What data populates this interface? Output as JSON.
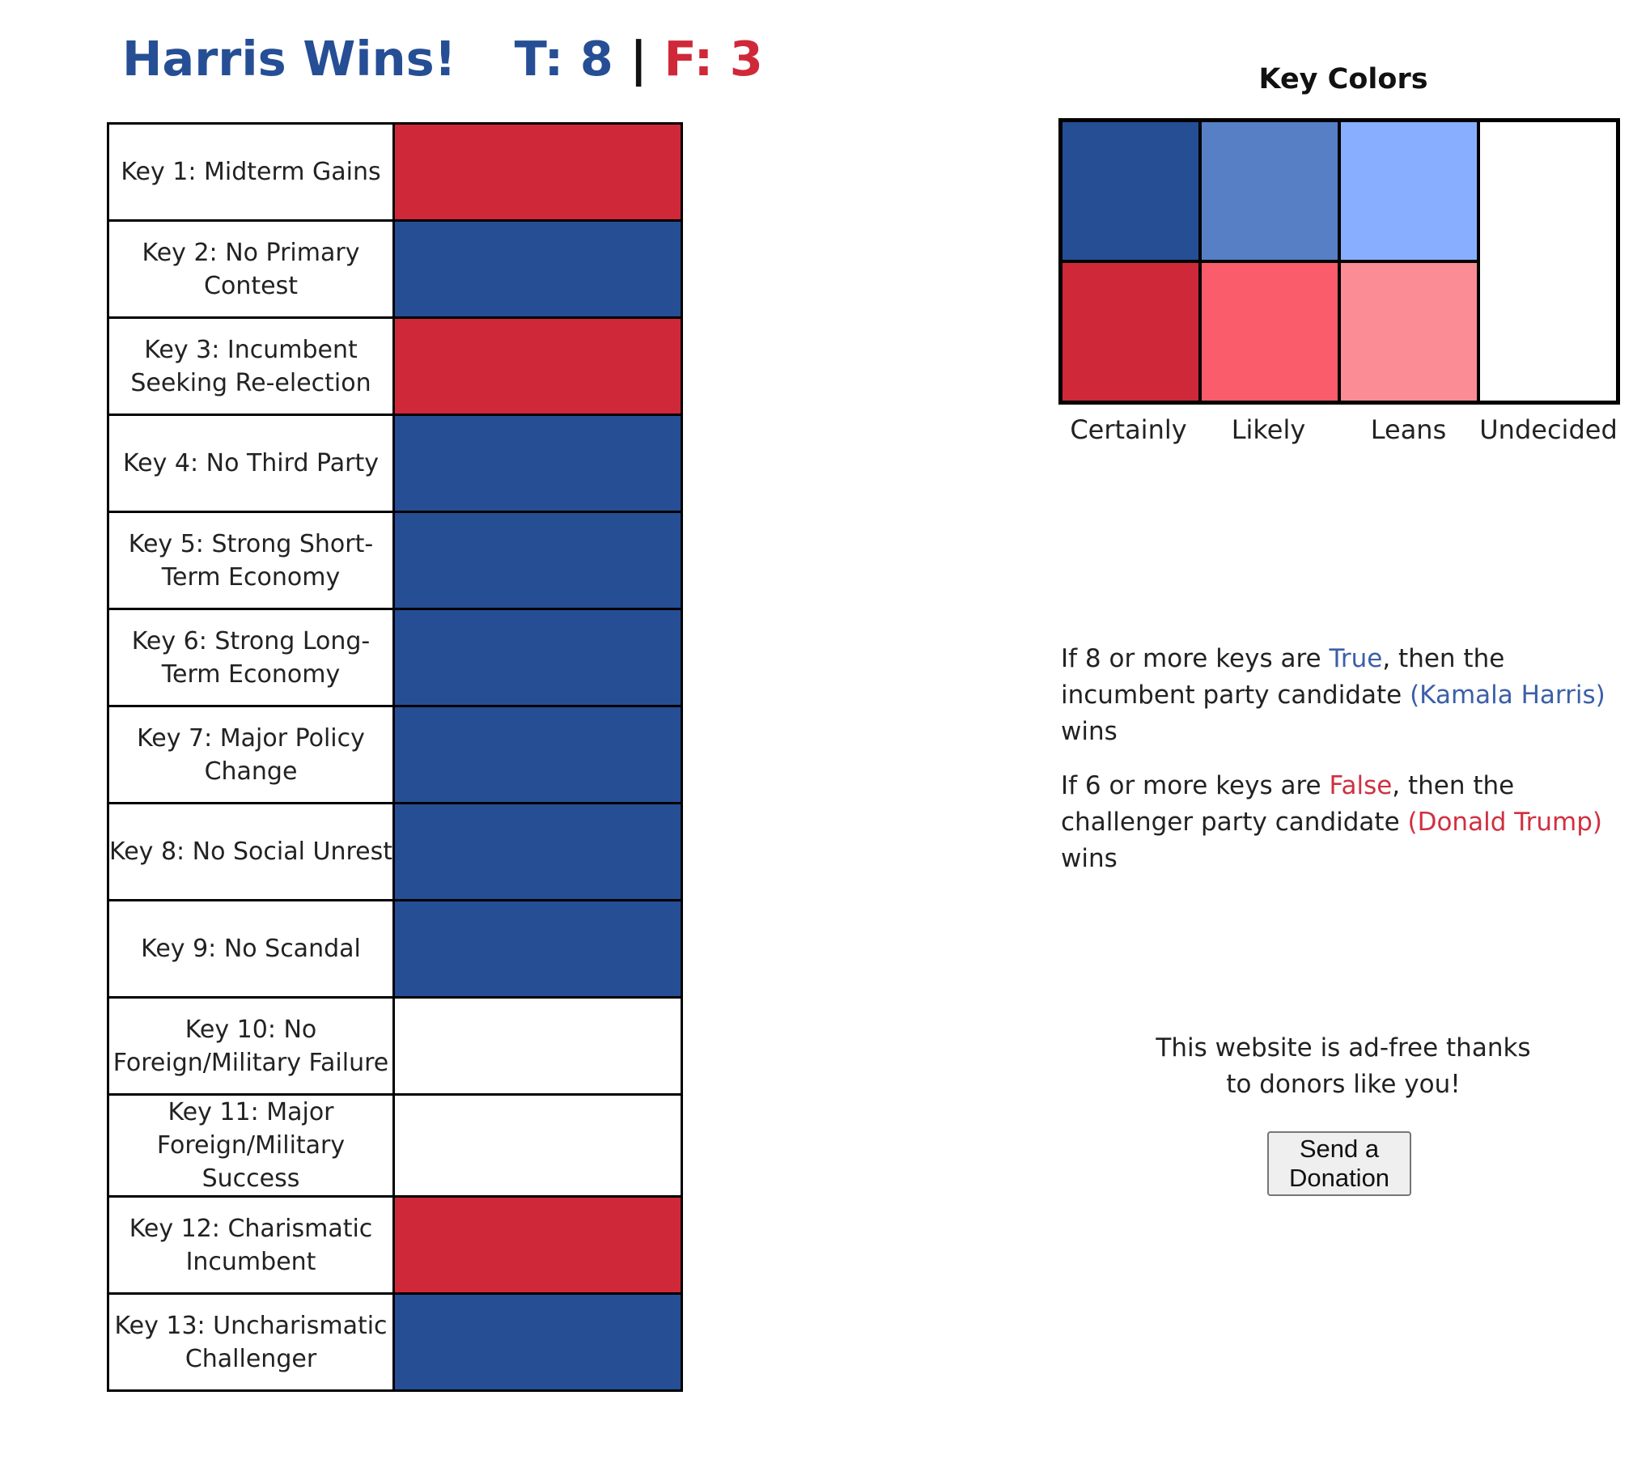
{
  "header": {
    "winner_text": "Harris Wins!",
    "true_label": "T:",
    "true_count": "8",
    "separator": "|",
    "false_label": "F:",
    "false_count": "3"
  },
  "colors": {
    "certain_true": "#254e95",
    "likely_true": "#577fc6",
    "leans_true": "#88afff",
    "certain_false": "#cf2939",
    "likely_false": "#fb5c6b",
    "leans_false": "#fb8c96",
    "undecided": "#ffffff"
  },
  "keys": [
    {
      "label": "Key 1: Midterm Gains",
      "status": "certain_false"
    },
    {
      "label": "Key 2: No Primary Contest",
      "status": "certain_true"
    },
    {
      "label": "Key 3: Incumbent Seeking Re-election",
      "status": "certain_false"
    },
    {
      "label": "Key 4: No Third Party",
      "status": "certain_true"
    },
    {
      "label": "Key 5: Strong Short-Term Economy",
      "status": "certain_true"
    },
    {
      "label": "Key 6: Strong Long-Term Economy",
      "status": "certain_true"
    },
    {
      "label": "Key 7: Major Policy Change",
      "status": "certain_true"
    },
    {
      "label": "Key 8: No Social Unrest",
      "status": "certain_true"
    },
    {
      "label": "Key 9: No Scandal",
      "status": "certain_true"
    },
    {
      "label": "Key 10: No Foreign/Military Failure",
      "status": "undecided"
    },
    {
      "label": "Key 11: Major Foreign/Military Success",
      "status": "undecided"
    },
    {
      "label": "Key 12: Charismatic Incumbent",
      "status": "certain_false"
    },
    {
      "label": "Key 13: Uncharismatic Challenger",
      "status": "certain_true"
    }
  ],
  "legend": {
    "title": "Key Colors",
    "labels": [
      "Certainly",
      "Likely",
      "Leans",
      "Undecided"
    ]
  },
  "rules": {
    "true_rule": {
      "pre": "If 8 or more keys are ",
      "word": "True",
      "mid": ", then the incumbent party candidate ",
      "candidate": "(Kamala Harris)",
      "post": " wins"
    },
    "false_rule": {
      "pre": "If 6 or more keys are ",
      "word": "False",
      "mid": ", then the challenger party candidate ",
      "candidate": "(Donald Trump)",
      "post": " wins"
    }
  },
  "donate": {
    "text": "This website is ad-free thanks to donors like you!",
    "button_label": "Send a Donation"
  }
}
